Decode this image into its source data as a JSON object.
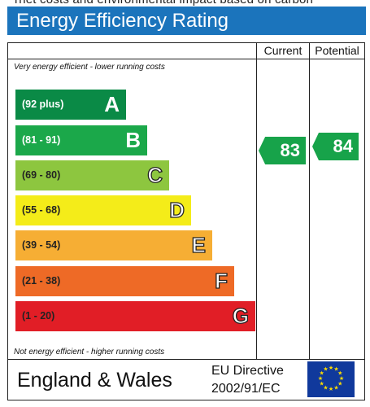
{
  "header": {
    "cut_text": "rnet costs and environmental impact based on carbon",
    "title": "Energy Efficiency Rating"
  },
  "columns": {
    "current": "Current",
    "potential": "Potential"
  },
  "notes": {
    "top": "Very energy efficient - lower running costs",
    "bottom": "Not energy efficient - higher running costs"
  },
  "bands": [
    {
      "range": "(92 plus)",
      "letter": "A",
      "color": "#0a8a46"
    },
    {
      "range": "(81 - 91)",
      "letter": "B",
      "color": "#1ba84a"
    },
    {
      "range": "(69 - 80)",
      "letter": "C",
      "color": "#8dc63f"
    },
    {
      "range": "(55 - 68)",
      "letter": "D",
      "color": "#f4ec19"
    },
    {
      "range": "(39 - 54)",
      "letter": "E",
      "color": "#f6ae34"
    },
    {
      "range": "(21 - 38)",
      "letter": "F",
      "color": "#ee6a26"
    },
    {
      "range": "(1 - 20)",
      "letter": "G",
      "color": "#e11e26"
    }
  ],
  "ratings": {
    "current": "83",
    "potential": "84",
    "arrow_color": "#17a34a"
  },
  "footer": {
    "region": "England & Wales",
    "directive_line1": "EU Directive",
    "directive_line2": "2002/91/EC"
  },
  "icons": {
    "flag": "eu-flag-icon"
  }
}
